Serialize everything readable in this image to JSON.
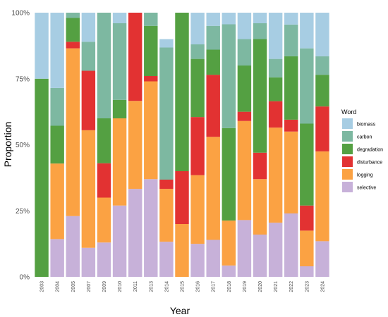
{
  "chart_data": {
    "type": "bar",
    "stacked": true,
    "normalized": true,
    "xlabel": "Year",
    "ylabel": "Proportion",
    "ylim": [
      0,
      1
    ],
    "yticks": [
      0,
      0.25,
      0.5,
      0.75,
      1.0
    ],
    "ytick_labels": [
      "0%",
      "25%",
      "50%",
      "75%",
      "100%"
    ],
    "grid": false,
    "legend": {
      "title": "Word",
      "position": "right"
    },
    "categories": [
      "2003",
      "2004",
      "2005",
      "2007",
      "2009",
      "2010",
      "2011",
      "2013",
      "2014",
      "2015",
      "2016",
      "2017",
      "2018",
      "2019",
      "2020",
      "2021",
      "2022",
      "2023",
      "2024"
    ],
    "series": [
      {
        "name": "selective",
        "color": "#c7b1d9",
        "values": [
          0.0,
          0.143,
          0.23,
          0.11,
          0.13,
          0.27,
          0.333,
          0.37,
          0.133,
          0.0,
          0.125,
          0.14,
          0.043,
          0.215,
          0.16,
          0.205,
          0.24,
          0.04,
          0.135
        ]
      },
      {
        "name": "logging",
        "color": "#fba243",
        "values": [
          0.0,
          0.286,
          0.635,
          0.445,
          0.17,
          0.33,
          0.333,
          0.37,
          0.2,
          0.2,
          0.26,
          0.39,
          0.17,
          0.375,
          0.21,
          0.36,
          0.31,
          0.135,
          0.34
        ]
      },
      {
        "name": "disturbance",
        "color": "#e23232",
        "values": [
          0.0,
          0.0,
          0.025,
          0.225,
          0.13,
          0.0,
          0.334,
          0.02,
          0.035,
          0.2,
          0.22,
          0.235,
          0.0,
          0.035,
          0.1,
          0.1,
          0.045,
          0.095,
          0.17
        ]
      },
      {
        "name": "degradation",
        "color": "#54a042",
        "values": [
          0.75,
          0.143,
          0.09,
          0.0,
          0.17,
          0.07,
          0.0,
          0.19,
          0.0,
          0.6,
          0.22,
          0.095,
          0.35,
          0.175,
          0.43,
          0.09,
          0.24,
          0.31,
          0.12
        ]
      },
      {
        "name": "carbon",
        "color": "#7db8a1",
        "values": [
          0.0,
          0.143,
          0.02,
          0.11,
          0.4,
          0.29,
          0.0,
          0.05,
          0.5,
          0.0,
          0.055,
          0.09,
          0.393,
          0.1,
          0.06,
          0.07,
          0.12,
          0.285,
          0.07
        ]
      },
      {
        "name": "biomass",
        "color": "#a7cde3",
        "values": [
          0.25,
          0.285,
          0.0,
          0.11,
          0.0,
          0.04,
          0.0,
          0.0,
          0.032,
          0.0,
          0.12,
          0.05,
          0.044,
          0.1,
          0.04,
          0.175,
          0.045,
          0.135,
          0.165
        ]
      }
    ],
    "legend_order": [
      "biomass",
      "carbon",
      "degradation",
      "disturbance",
      "logging",
      "selective"
    ]
  }
}
